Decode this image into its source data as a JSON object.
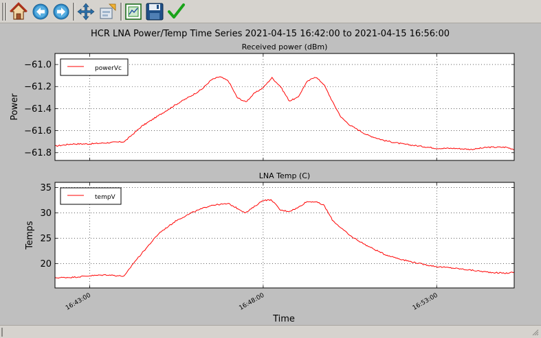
{
  "toolbar": {
    "buttons": [
      {
        "name": "home-button",
        "icon": "home-icon"
      },
      {
        "name": "back-button",
        "icon": "back-arrow-icon"
      },
      {
        "name": "forward-button",
        "icon": "forward-arrow-icon"
      },
      {
        "name": "pan-button",
        "icon": "pan-arrows-icon"
      },
      {
        "name": "zoom-button",
        "icon": "zoom-rect-icon"
      },
      {
        "name": "subplots-button",
        "icon": "subplots-config-icon"
      },
      {
        "name": "save-button",
        "icon": "save-disk-icon"
      },
      {
        "name": "edit-axes-button",
        "icon": "checkmark-icon"
      }
    ]
  },
  "figure": {
    "suptitle": "HCR LNA Power/Temp Time Series 2021-04-15 16:42:00 to 2021-04-15 16:56:00",
    "xlabel": "Time"
  },
  "colors": {
    "line": "#ff0000",
    "figure_bg": "#bfbfbf",
    "toolbar_bg": "#d6d3ce"
  },
  "chart_data": [
    {
      "type": "line",
      "title": "Received power (dBm)",
      "ylabel": "Power",
      "xlabel": "",
      "xlim": [
        "16:42:00",
        "16:55:14"
      ],
      "ylim": [
        -61.87,
        -60.9
      ],
      "yticks": [
        -61.0,
        -61.2,
        -61.4,
        -61.6,
        -61.8
      ],
      "ytick_labels": [
        "−61.0",
        "−61.2",
        "−61.4",
        "−61.6",
        "−61.8"
      ],
      "xticks": [
        "16:43:00",
        "16:48:00",
        "16:53:00"
      ],
      "xtick_labels": [
        "",
        "",
        ""
      ],
      "grid": true,
      "legend": "top-left",
      "series": [
        {
          "name": "powerVc",
          "x": [
            "16:42:00",
            "16:42:30",
            "16:43:00",
            "16:43:30",
            "16:44:00",
            "16:44:30",
            "16:45:00",
            "16:45:30",
            "16:46:00",
            "16:46:15",
            "16:46:30",
            "16:46:45",
            "16:47:00",
            "16:47:15",
            "16:47:30",
            "16:47:45",
            "16:48:00",
            "16:48:15",
            "16:48:30",
            "16:48:45",
            "16:49:00",
            "16:49:15",
            "16:49:30",
            "16:49:45",
            "16:50:00",
            "16:50:15",
            "16:50:30",
            "16:51:00",
            "16:51:30",
            "16:52:00",
            "16:52:30",
            "16:53:00",
            "16:53:30",
            "16:54:00",
            "16:54:30",
            "16:55:00",
            "16:55:14"
          ],
          "values": [
            -61.74,
            -61.72,
            -61.72,
            -61.71,
            -61.7,
            -61.56,
            -61.46,
            -61.36,
            -61.27,
            -61.22,
            -61.14,
            -61.11,
            -61.15,
            -61.3,
            -61.34,
            -61.26,
            -61.21,
            -61.12,
            -61.2,
            -61.33,
            -61.3,
            -61.16,
            -61.11,
            -61.18,
            -61.34,
            -61.48,
            -61.55,
            -61.64,
            -61.69,
            -61.72,
            -61.74,
            -61.76,
            -61.76,
            -61.77,
            -61.75,
            -61.75,
            -61.77
          ]
        }
      ]
    },
    {
      "type": "line",
      "title": "LNA Temp (C)",
      "ylabel": "Temps",
      "xlabel": "Time",
      "xlim": [
        "16:42:00",
        "16:55:14"
      ],
      "ylim": [
        15.2,
        36
      ],
      "yticks": [
        20,
        25,
        30,
        35
      ],
      "ytick_labels": [
        "20",
        "25",
        "30",
        "35"
      ],
      "xticks": [
        "16:43:00",
        "16:48:00",
        "16:53:00"
      ],
      "xtick_labels": [
        "16:43:00",
        "16:48:00",
        "16:53:00"
      ],
      "grid": true,
      "legend": "top-left",
      "series": [
        {
          "name": "tempV",
          "x": [
            "16:42:00",
            "16:42:30",
            "16:43:00",
            "16:43:30",
            "16:44:00",
            "16:44:15",
            "16:44:30",
            "16:45:00",
            "16:45:30",
            "16:46:00",
            "16:46:30",
            "16:47:00",
            "16:47:30",
            "16:48:00",
            "16:48:15",
            "16:48:30",
            "16:48:45",
            "16:49:00",
            "16:49:15",
            "16:49:30",
            "16:49:45",
            "16:50:00",
            "16:50:30",
            "16:51:00",
            "16:51:30",
            "16:52:00",
            "16:52:30",
            "16:53:00",
            "16:53:30",
            "16:54:00",
            "16:54:30",
            "16:55:00",
            "16:55:14"
          ],
          "values": [
            17.2,
            17.3,
            17.6,
            17.8,
            17.5,
            20.0,
            22.0,
            26.0,
            28.5,
            30.2,
            31.5,
            31.8,
            30.0,
            32.5,
            32.5,
            30.5,
            30.3,
            31.0,
            32.2,
            32.2,
            31.5,
            28.5,
            25.5,
            23.5,
            21.8,
            20.8,
            20.0,
            19.4,
            19.1,
            18.7,
            18.3,
            18.1,
            18.3
          ]
        }
      ]
    }
  ]
}
